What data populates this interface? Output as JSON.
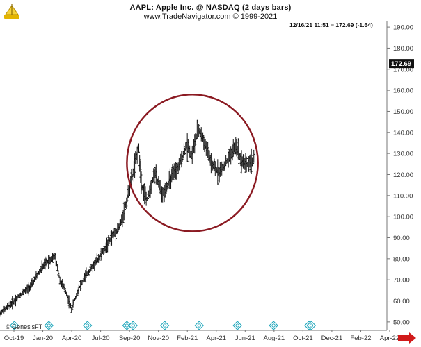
{
  "header": {
    "title": "AAPL:  Apple Inc. @ NASDAQ  (2 days bars)",
    "subtitle": "www.TradeNavigator.com © 1999-2021",
    "readout": "12/16/21 11:51 = 172.69 (-1.64)"
  },
  "watermark": "© GenesisFT",
  "colors": {
    "bars": "#111111",
    "circle": "#8b1a22",
    "event_markers": "#16a2b8",
    "arrow": "#d11a1a",
    "last_price_bg": "#111111"
  },
  "chart_data": {
    "type": "ohlc",
    "symbol": "AAPL",
    "title": "AAPL:  Apple Inc. @ NASDAQ  (2 days bars)",
    "y_ticks": [
      "50.00",
      "60.00",
      "70.00",
      "80.00",
      "90.00",
      "100.00",
      "110.00",
      "120.00",
      "130.00",
      "140.00",
      "150.00",
      "160.00",
      "170.00",
      "180.00",
      "190.00"
    ],
    "y_range": [
      46,
      193
    ],
    "last_price": "172.69",
    "x_ticks": [
      "Oct-19",
      "Jan-20",
      "Apr-20",
      "Jul-20",
      "Sep-20",
      "Nov-20",
      "Feb-21",
      "Apr-21",
      "Jun-21",
      "Aug-21",
      "Oct-21",
      "Dec-21",
      "Feb-22",
      "Apr-22"
    ],
    "x_range": [
      "2019-10-01",
      "2022-04-30"
    ],
    "grid": false,
    "price_path": [
      [
        "2019-10-01",
        54
      ],
      [
        "2019-10-25",
        58
      ],
      [
        "2019-11-20",
        63
      ],
      [
        "2019-12-15",
        67
      ],
      [
        "2020-01-05",
        74
      ],
      [
        "2020-01-25",
        79
      ],
      [
        "2020-02-12",
        81
      ],
      [
        "2020-02-24",
        70
      ],
      [
        "2020-03-10",
        64
      ],
      [
        "2020-03-23",
        56
      ],
      [
        "2020-04-10",
        66
      ],
      [
        "2020-04-30",
        73
      ],
      [
        "2020-05-20",
        78
      ],
      [
        "2020-06-10",
        84
      ],
      [
        "2020-07-01",
        91
      ],
      [
        "2020-07-20",
        96
      ],
      [
        "2020-08-05",
        108
      ],
      [
        "2020-08-24",
        124
      ],
      [
        "2020-09-02",
        134
      ],
      [
        "2020-09-10",
        115
      ],
      [
        "2020-09-23",
        108
      ],
      [
        "2020-10-12",
        121
      ],
      [
        "2020-10-30",
        110
      ],
      [
        "2020-11-20",
        118
      ],
      [
        "2020-12-10",
        124
      ],
      [
        "2020-12-28",
        134
      ],
      [
        "2021-01-10",
        129
      ],
      [
        "2021-01-26",
        142
      ],
      [
        "2021-02-10",
        135
      ],
      [
        "2021-03-01",
        124
      ],
      [
        "2021-03-20",
        121
      ],
      [
        "2021-04-05",
        126
      ],
      [
        "2021-04-28",
        134
      ],
      [
        "2021-05-10",
        127
      ],
      [
        "2021-05-25",
        125
      ],
      [
        "2021-06-10",
        127
      ]
    ],
    "event_markers": [
      "2019-11-05",
      "2020-01-28",
      "2020-05-01",
      "2020-08-05",
      "2020-08-20",
      "2020-11-05",
      "2021-01-28",
      "2021-05-01",
      "2021-07-28",
      "2021-10-22",
      "2021-10-28"
    ],
    "annotation": {
      "shape": "circle",
      "from": "2020-08-05",
      "to": "2021-06-20",
      "low": 93,
      "high": 158
    }
  }
}
